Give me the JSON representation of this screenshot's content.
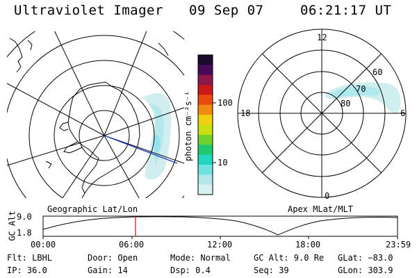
{
  "header": {
    "title": "Ultraviolet Imager",
    "date": "09 Sep 07",
    "time": "06:21:17 UT"
  },
  "colorbar": {
    "unit_label": "photon cm⁻²s⁻¹",
    "ticks": [
      "100",
      "10"
    ],
    "colors": [
      "#1a0a2e",
      "#4a0a5a",
      "#8a1a4a",
      "#c81a1a",
      "#e84a10",
      "#f08a10",
      "#f0d010",
      "#c8e010",
      "#70d030",
      "#20c870",
      "#20d8c0",
      "#70e0e0",
      "#b0e8e8",
      "#d8f0f0"
    ]
  },
  "geo_map": {
    "label": "Geographic Lat/Lon"
  },
  "apex_map": {
    "label": "Apex MLat/MLT",
    "mlt_labels": {
      "top": "12",
      "left": "18",
      "right": "6",
      "bottom": "0"
    },
    "lat_labels": [
      "60",
      "70",
      "80"
    ]
  },
  "alt_plot": {
    "ylabel": "GC Alt",
    "y_ticks": [
      "9.0",
      "1.8"
    ],
    "x_ticks": [
      "00:00",
      "06:00",
      "12:00",
      "18:00",
      "23:59"
    ],
    "current_time_label": "06:21"
  },
  "info": {
    "flt": "Flt: LBHL",
    "ip": "IP: 36.0",
    "door": "Door: Open",
    "gain": "Gain: 14",
    "mode": "Mode: Normal",
    "dsp": "Dsp:    0.4",
    "gcalt": "GC Alt: 9.0 Re",
    "seq": "Seq: 39",
    "glat": "GLat: −83.0",
    "glon": "GLon: 303.9"
  }
}
